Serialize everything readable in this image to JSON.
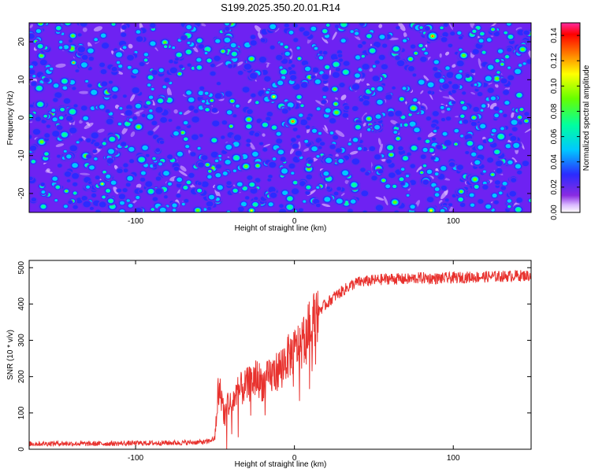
{
  "title": "S199.2025.350.20.01.R14",
  "chart_data": [
    {
      "type": "heatmap",
      "description_visible": "spectrogram",
      "xlabel": "Height of straight line (km)",
      "ylabel": "Frequency (Hz)",
      "xlim": [
        -167,
        149
      ],
      "ylim": [
        -25,
        25
      ],
      "x_ticks": [
        -100,
        0,
        100
      ],
      "y_ticks": [
        -20,
        -10,
        0,
        10,
        20
      ],
      "colorbar": {
        "label": "Normalized spectral amplitude",
        "range": [
          0,
          0.15
        ],
        "ticks": [
          "0.00",
          "0.02",
          "0.04",
          "0.06",
          "0.08",
          "0.10",
          "0.12",
          "0.14"
        ]
      },
      "hotspots": [
        {
          "x": -139,
          "y": 14.5,
          "v": 0.13
        },
        {
          "x": -13,
          "y": 5.5,
          "v": 0.12
        },
        {
          "x": -1,
          "y": -1,
          "v": 0.13
        },
        {
          "x": 87,
          "y": 21.5,
          "v": 0.13
        },
        {
          "x": -121,
          "y": -17.5,
          "v": 0.11
        },
        {
          "x": -27,
          "y": -24.5,
          "v": 0.12
        },
        {
          "x": 86,
          "y": -24.5,
          "v": 0.12
        },
        {
          "x": -52,
          "y": 4.5,
          "v": 0.1
        },
        {
          "x": -45,
          "y": 17.5,
          "v": 0.1
        },
        {
          "x": -27,
          "y": 15.5,
          "v": 0.1
        },
        {
          "x": 75,
          "y": 2.5,
          "v": 0.09
        },
        {
          "x": 113,
          "y": 0,
          "v": 0.09
        },
        {
          "x": 105,
          "y": -19.5,
          "v": 0.09
        },
        {
          "x": 40,
          "y": -2.5,
          "v": 0.08
        },
        {
          "x": -160,
          "y": 3.5,
          "v": 0.08
        },
        {
          "x": 130,
          "y": -5,
          "v": 0.08
        },
        {
          "x": 47,
          "y": 21.5,
          "v": 0.08
        }
      ]
    },
    {
      "type": "line",
      "xlabel": "Height of straight line (km)",
      "ylabel": "SNR (10 * v/v)",
      "xlim": [
        -167,
        149
      ],
      "ylim": [
        0,
        520
      ],
      "x_ticks": [
        -100,
        0,
        100
      ],
      "y_ticks": [
        0,
        100,
        200,
        300,
        400,
        500
      ],
      "series": [
        {
          "name": "SNR",
          "color": "#e8322e",
          "x": [
            -167,
            -150,
            -130,
            -110,
            -90,
            -70,
            -55,
            -50,
            -48,
            -46,
            -44,
            -42,
            -40,
            -38,
            -35,
            -32,
            -28,
            -24,
            -20,
            -15,
            -10,
            -5,
            0,
            5,
            10,
            15,
            20,
            25,
            30,
            35,
            40,
            50,
            60,
            70,
            80,
            90,
            100,
            110,
            120,
            130,
            140,
            149
          ],
          "values": [
            15,
            16,
            15,
            16,
            17,
            18,
            20,
            30,
            160,
            150,
            90,
            130,
            120,
            140,
            160,
            170,
            180,
            200,
            180,
            200,
            220,
            250,
            270,
            300,
            340,
            380,
            400,
            420,
            435,
            450,
            460,
            465,
            470,
            468,
            472,
            470,
            472,
            474,
            475,
            476,
            478,
            478
          ]
        }
      ]
    }
  ]
}
